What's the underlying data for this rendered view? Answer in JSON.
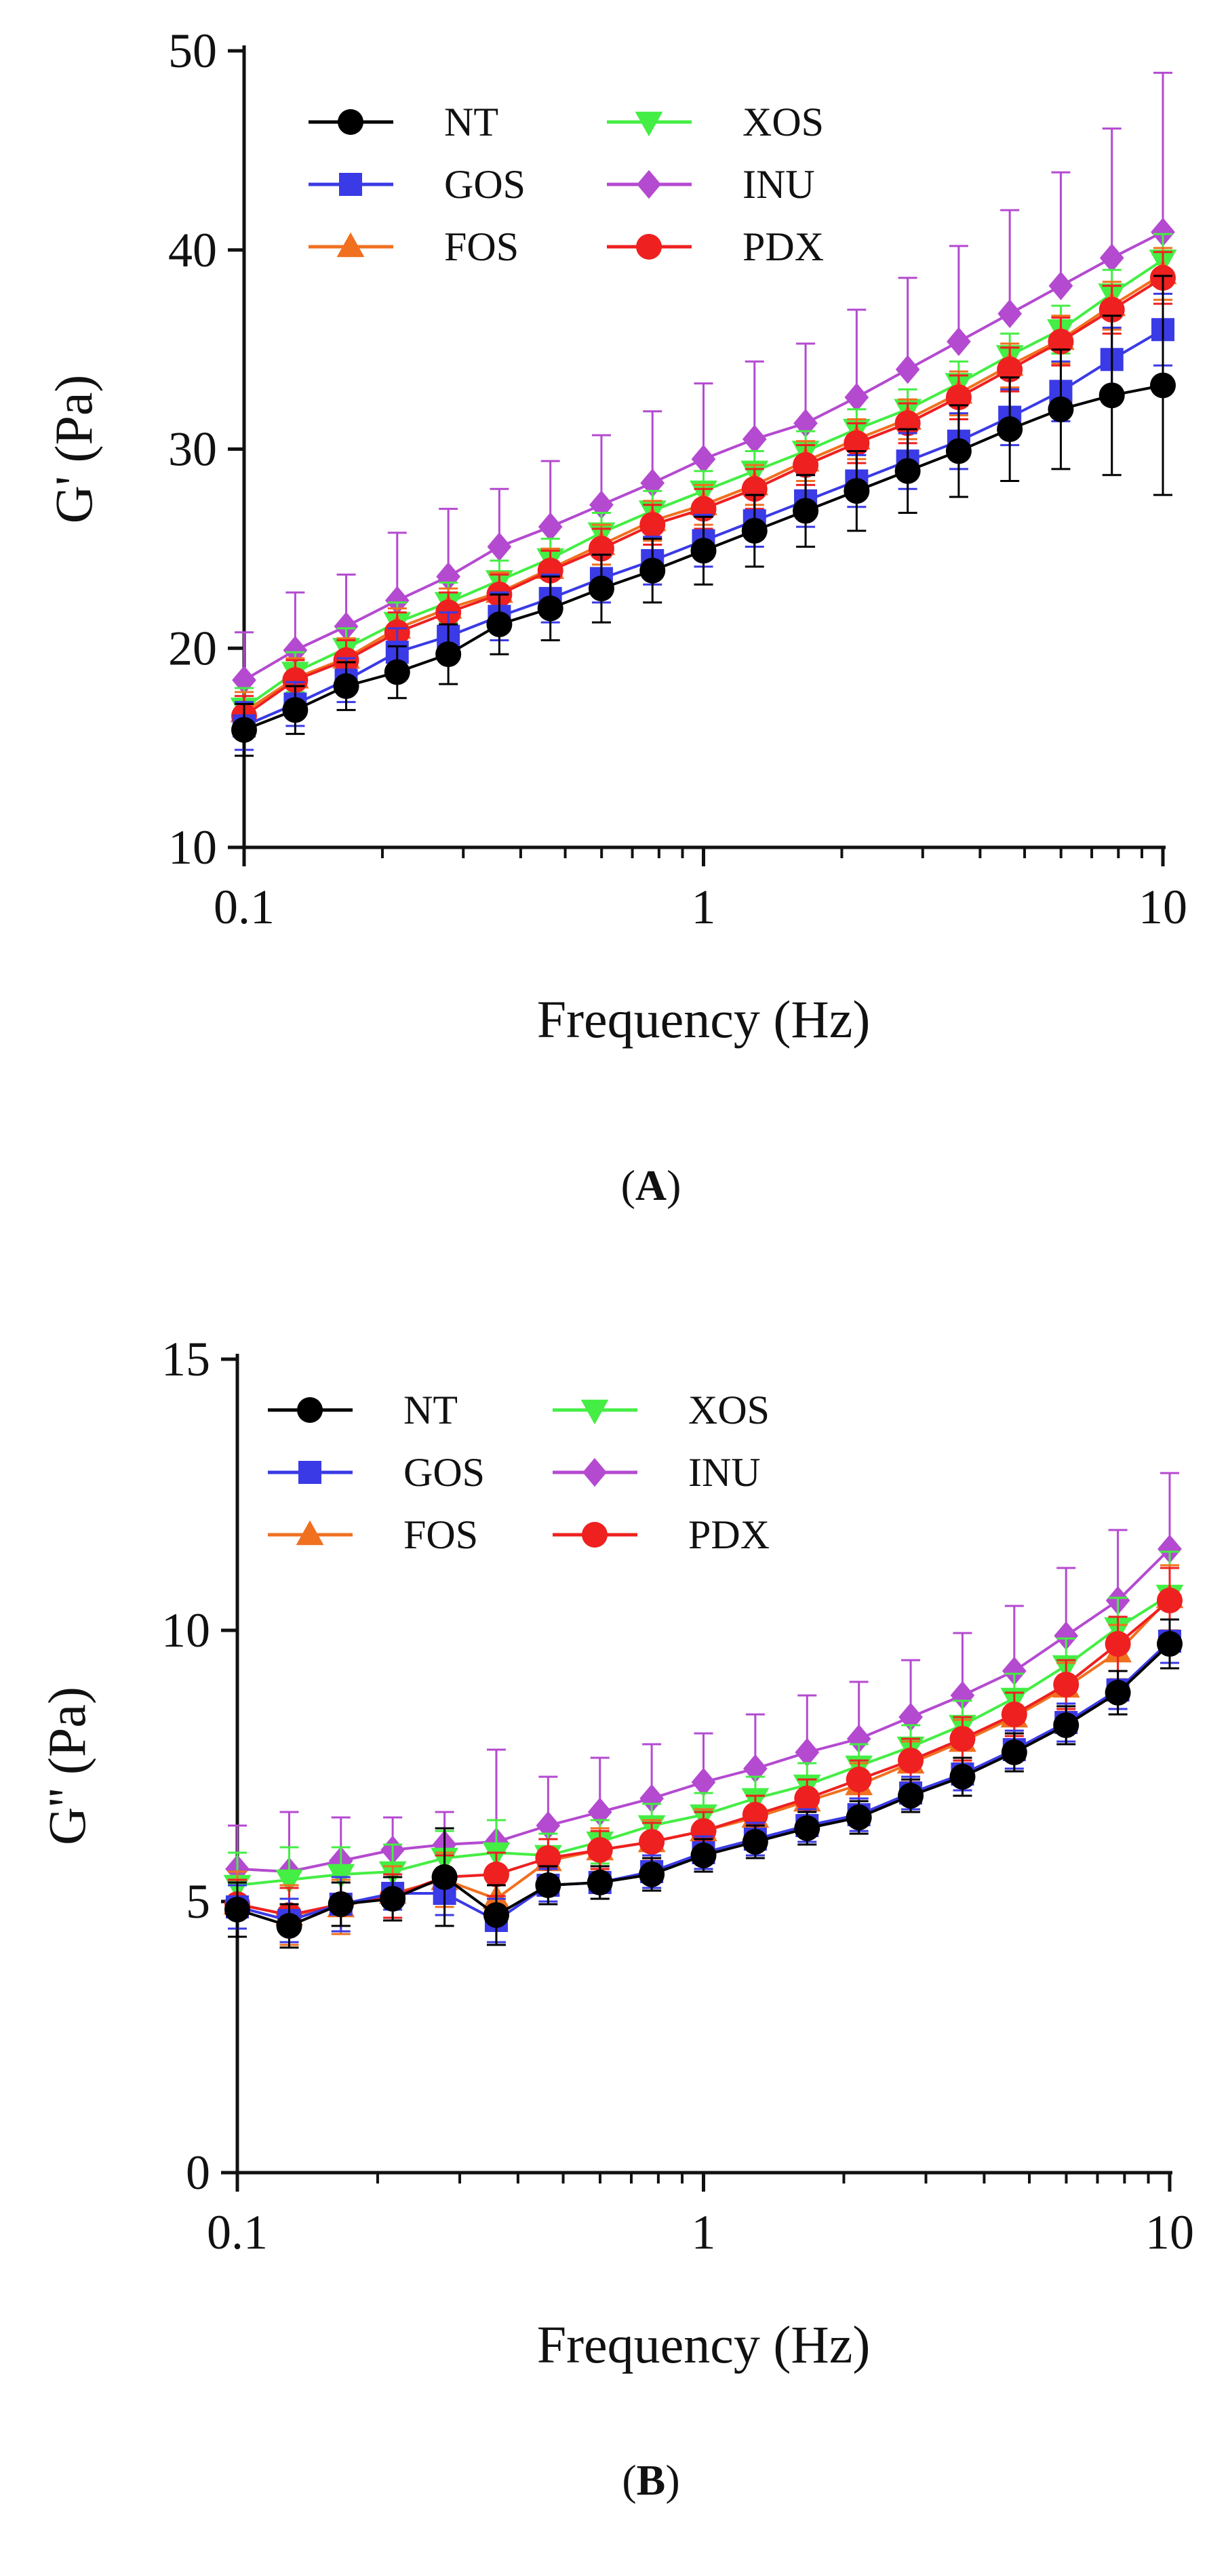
{
  "figure": {
    "panels": [
      "(A)",
      "(B)"
    ],
    "panel_letters": [
      "A",
      "B"
    ]
  },
  "colors": {
    "NT": "#000000",
    "GOS": "#3a3ae6",
    "FOS": "#f07020",
    "XOS": "#44ee44",
    "INU": "#b44ad0",
    "PDX": "#ee2020"
  },
  "chart_data": [
    {
      "type": "line",
      "title": "",
      "panel_label": "(A)",
      "xlabel": "Frequency (Hz)",
      "ylabel": "G' (Pa)",
      "xscale": "log",
      "xlim": [
        0.1,
        10
      ],
      "ylim": [
        10,
        50
      ],
      "x_ticks": [
        0.1,
        1,
        10
      ],
      "x_tick_labels": [
        "0.1",
        "1",
        "10"
      ],
      "y_ticks": [
        10,
        20,
        30,
        40,
        50
      ],
      "y_tick_labels": [
        "10",
        "20",
        "30",
        "40",
        "50"
      ],
      "legend_position": "top-left",
      "x": [
        0.1,
        0.1292,
        0.1668,
        0.2154,
        0.2783,
        0.3594,
        0.4642,
        0.5995,
        0.7743,
        1.0,
        1.2915,
        1.6681,
        2.1544,
        2.7826,
        3.5938,
        4.6416,
        5.9948,
        7.7426,
        10.0
      ],
      "series": [
        {
          "name": "NT",
          "marker": "circle",
          "values": [
            15.9,
            16.9,
            18.1,
            18.8,
            19.7,
            21.2,
            22.0,
            23.0,
            23.9,
            24.9,
            25.9,
            26.9,
            27.9,
            28.9,
            29.9,
            31.0,
            32.0,
            32.7,
            33.2
          ],
          "errors": [
            1.3,
            1.2,
            1.2,
            1.3,
            1.5,
            1.5,
            1.6,
            1.7,
            1.6,
            1.7,
            1.8,
            1.8,
            2.0,
            2.1,
            2.3,
            2.6,
            3.0,
            4.0,
            5.5
          ]
        },
        {
          "name": "GOS",
          "marker": "square",
          "values": [
            16.1,
            17.2,
            18.4,
            19.8,
            20.6,
            21.6,
            22.5,
            23.5,
            24.4,
            25.4,
            26.4,
            27.4,
            28.4,
            29.4,
            30.4,
            31.6,
            32.9,
            34.5,
            36.0
          ],
          "errors": [
            1.2,
            1.1,
            1.1,
            1.2,
            1.2,
            1.2,
            1.2,
            1.2,
            1.2,
            1.3,
            1.3,
            1.3,
            1.3,
            1.4,
            1.4,
            1.4,
            1.5,
            1.6,
            1.8
          ]
        },
        {
          "name": "FOS",
          "marker": "triangle-up",
          "values": [
            16.8,
            18.5,
            19.5,
            21.0,
            22.0,
            22.8,
            24.0,
            25.2,
            26.4,
            27.2,
            28.2,
            29.4,
            30.5,
            31.5,
            32.8,
            34.2,
            35.5,
            37.2,
            38.8
          ],
          "errors": [
            1.0,
            1.0,
            1.0,
            1.0,
            1.0,
            1.0,
            1.0,
            1.0,
            1.0,
            1.0,
            1.0,
            1.0,
            1.0,
            1.0,
            1.1,
            1.1,
            1.2,
            1.2,
            1.3
          ]
        },
        {
          "name": "XOS",
          "marker": "triangle-down",
          "values": [
            17.0,
            18.8,
            20.0,
            21.3,
            22.3,
            23.4,
            24.5,
            25.8,
            26.9,
            27.9,
            28.9,
            29.9,
            31.0,
            32.0,
            33.3,
            34.7,
            36.0,
            37.8,
            39.5
          ],
          "errors": [
            1.0,
            1.0,
            1.0,
            1.0,
            1.0,
            1.0,
            1.0,
            1.0,
            1.0,
            1.0,
            1.0,
            1.0,
            1.0,
            1.0,
            1.1,
            1.1,
            1.2,
            1.2,
            1.3
          ]
        },
        {
          "name": "INU",
          "marker": "diamond",
          "values": [
            18.4,
            19.9,
            21.1,
            22.4,
            23.6,
            25.1,
            26.1,
            27.2,
            28.3,
            29.5,
            30.5,
            31.3,
            32.6,
            34.0,
            35.4,
            36.8,
            38.2,
            39.6,
            40.9
          ],
          "errors": [
            2.4,
            2.9,
            2.6,
            3.4,
            3.4,
            2.9,
            3.3,
            3.5,
            3.6,
            3.8,
            3.9,
            4.0,
            4.4,
            4.6,
            4.8,
            5.2,
            5.7,
            6.5,
            8.0
          ]
        },
        {
          "name": "PDX",
          "marker": "circle",
          "values": [
            16.6,
            18.4,
            19.4,
            20.8,
            21.8,
            22.7,
            23.9,
            25.0,
            26.2,
            27.0,
            28.0,
            29.2,
            30.3,
            31.3,
            32.6,
            34.0,
            35.4,
            37.0,
            38.6
          ],
          "errors": [
            1.0,
            1.0,
            1.0,
            1.0,
            1.0,
            1.0,
            1.0,
            1.0,
            1.0,
            1.0,
            1.0,
            1.0,
            1.0,
            1.0,
            1.1,
            1.1,
            1.2,
            1.2,
            1.3
          ]
        }
      ]
    },
    {
      "type": "line",
      "title": "",
      "panel_label": "(B)",
      "xlabel": "Frequency (Hz)",
      "ylabel": "G'' (Pa)",
      "xscale": "log",
      "xlim": [
        0.1,
        10
      ],
      "ylim": [
        0,
        15
      ],
      "x_ticks": [
        0.1,
        1,
        10
      ],
      "x_tick_labels": [
        "0.1",
        "1",
        "10"
      ],
      "y_ticks": [
        0,
        5,
        10,
        15
      ],
      "y_tick_labels": [
        "0",
        "5",
        "10",
        "15"
      ],
      "legend_position": "top-left",
      "x": [
        0.1,
        0.1292,
        0.1668,
        0.2154,
        0.2783,
        0.3594,
        0.4642,
        0.5995,
        0.7743,
        1.0,
        1.2915,
        1.6681,
        2.1544,
        2.7826,
        3.5938,
        4.6416,
        5.9948,
        7.7426,
        10.0
      ],
      "series": [
        {
          "name": "NT",
          "marker": "circle",
          "values": [
            4.85,
            4.55,
            4.95,
            5.05,
            5.45,
            4.75,
            5.3,
            5.35,
            5.5,
            5.85,
            6.1,
            6.35,
            6.55,
            6.95,
            7.3,
            7.75,
            8.25,
            8.85,
            9.75
          ],
          "errors": [
            0.5,
            0.4,
            0.4,
            0.4,
            0.9,
            0.55,
            0.35,
            0.3,
            0.3,
            0.3,
            0.3,
            0.3,
            0.3,
            0.3,
            0.35,
            0.35,
            0.35,
            0.4,
            0.45
          ]
        },
        {
          "name": "GOS",
          "marker": "square",
          "values": [
            4.9,
            4.65,
            4.95,
            5.15,
            5.15,
            4.65,
            5.3,
            5.35,
            5.55,
            5.9,
            6.15,
            6.4,
            6.6,
            7.0,
            7.35,
            7.8,
            8.3,
            8.9,
            9.8
          ],
          "errors": [
            0.4,
            0.4,
            0.5,
            0.3,
            0.4,
            0.4,
            0.3,
            0.3,
            0.3,
            0.3,
            0.3,
            0.3,
            0.3,
            0.3,
            0.3,
            0.35,
            0.35,
            0.35,
            0.4
          ]
        },
        {
          "name": "FOS",
          "marker": "triangle-up",
          "values": [
            4.95,
            4.75,
            4.9,
            5.15,
            5.4,
            5.05,
            5.75,
            5.95,
            6.1,
            6.3,
            6.55,
            6.85,
            7.15,
            7.55,
            7.95,
            8.4,
            8.95,
            9.6,
            10.6
          ],
          "errors": [
            0.6,
            0.55,
            0.5,
            0.5,
            0.5,
            0.4,
            0.4,
            0.4,
            0.4,
            0.4,
            0.4,
            0.4,
            0.4,
            0.4,
            0.4,
            0.45,
            0.45,
            0.5,
            0.6
          ]
        },
        {
          "name": "XOS",
          "marker": "triangle-down",
          "values": [
            5.3,
            5.4,
            5.5,
            5.55,
            5.8,
            5.9,
            5.85,
            6.1,
            6.4,
            6.6,
            6.9,
            7.15,
            7.5,
            7.85,
            8.25,
            8.75,
            9.35,
            10.05,
            10.65
          ],
          "errors": [
            0.6,
            0.6,
            0.5,
            0.5,
            0.5,
            0.6,
            0.4,
            0.4,
            0.4,
            0.4,
            0.4,
            0.4,
            0.4,
            0.4,
            0.45,
            0.45,
            0.5,
            0.55,
            0.8
          ]
        },
        {
          "name": "INU",
          "marker": "diamond",
          "values": [
            5.6,
            5.55,
            5.75,
            5.95,
            6.05,
            6.1,
            6.4,
            6.65,
            6.9,
            7.2,
            7.45,
            7.75,
            8.0,
            8.4,
            8.8,
            9.25,
            9.9,
            10.55,
            11.5
          ],
          "errors": [
            0.8,
            1.1,
            0.8,
            0.6,
            0.6,
            1.7,
            0.9,
            1.0,
            1.0,
            0.9,
            1.0,
            1.05,
            1.05,
            1.05,
            1.15,
            1.2,
            1.25,
            1.3,
            1.4
          ]
        },
        {
          "name": "PDX",
          "marker": "circle",
          "values": [
            4.95,
            4.75,
            4.95,
            5.1,
            5.45,
            5.5,
            5.8,
            5.95,
            6.1,
            6.3,
            6.6,
            6.9,
            7.25,
            7.6,
            8.0,
            8.45,
            9.0,
            9.75,
            10.55
          ],
          "errors": [
            0.45,
            0.5,
            0.4,
            0.4,
            0.4,
            0.4,
            0.35,
            0.35,
            0.35,
            0.35,
            0.35,
            0.35,
            0.35,
            0.4,
            0.4,
            0.4,
            0.45,
            0.5,
            0.6
          ]
        }
      ]
    }
  ]
}
